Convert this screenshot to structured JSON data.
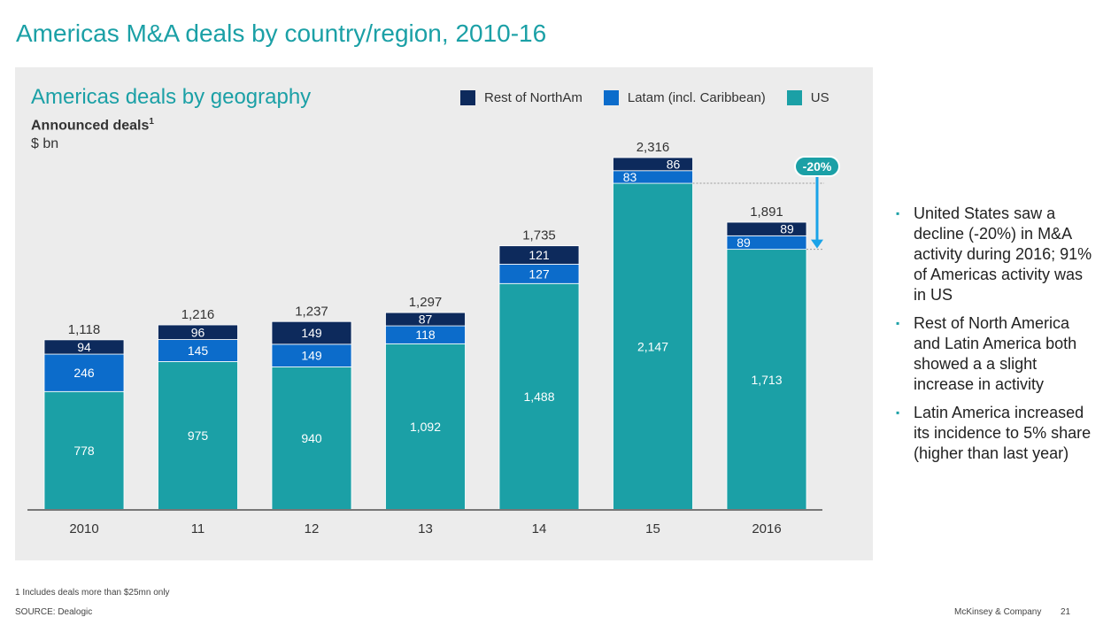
{
  "slide": {
    "title": "Americas M&A deals by country/region, 2010-16",
    "footnote": "1 Includes deals more than $25mn only",
    "source": "SOURCE: Dealogic",
    "brand": "McKinsey & Company",
    "page_number": "21"
  },
  "panel": {
    "title": "Americas deals by geography",
    "ylabel": "Announced deals",
    "ylabel_sup": "1",
    "yunit": "$ bn"
  },
  "chart_data": {
    "type": "bar",
    "stacked": true,
    "categories": [
      "2010",
      "11",
      "12",
      "13",
      "14",
      "15",
      "2016"
    ],
    "series": [
      {
        "name": "US",
        "color": "#1ba0a6",
        "values": [
          778,
          975,
          940,
          1092,
          1488,
          2147,
          1713
        ]
      },
      {
        "name": "Latam (incl. Caribbean)",
        "color": "#0c6ccb",
        "values": [
          246,
          145,
          149,
          118,
          127,
          83,
          89
        ]
      },
      {
        "name": "Rest of NorthAm",
        "color": "#0d2a5c",
        "values": [
          94,
          96,
          149,
          87,
          121,
          86,
          89
        ]
      }
    ],
    "segment_labels": [
      [
        "778",
        "975",
        "940",
        "1,092",
        "1,488",
        "2,147",
        "1,713"
      ],
      [
        "246",
        "145",
        "149",
        "118",
        "127",
        "83",
        "89"
      ],
      [
        "94",
        "96",
        "149",
        "87",
        "121",
        "86",
        "89"
      ]
    ],
    "totals": [
      "1,118",
      "1,216",
      "1,237",
      "1,297",
      "1,735",
      "2,316",
      "1,891"
    ],
    "legend_order": [
      "Rest of NorthAm",
      "Latam (incl. Caribbean)",
      "US"
    ],
    "annotation": {
      "text": "-20%",
      "from_category": "15",
      "to_category": "2016",
      "series": "US"
    },
    "ylim": [
      0,
      2316
    ],
    "xlabel": "",
    "ylabel": "Announced deals, $ bn"
  },
  "bullets": [
    "United States saw a decline (-20%) in M&A activity during 2016; 91% of Americas activity was in US",
    "Rest of North America and Latin America both showed a a slight increase in activity",
    "Latin America increased its incidence to 5% share (higher than last year)"
  ],
  "bullet_marker": "▪"
}
